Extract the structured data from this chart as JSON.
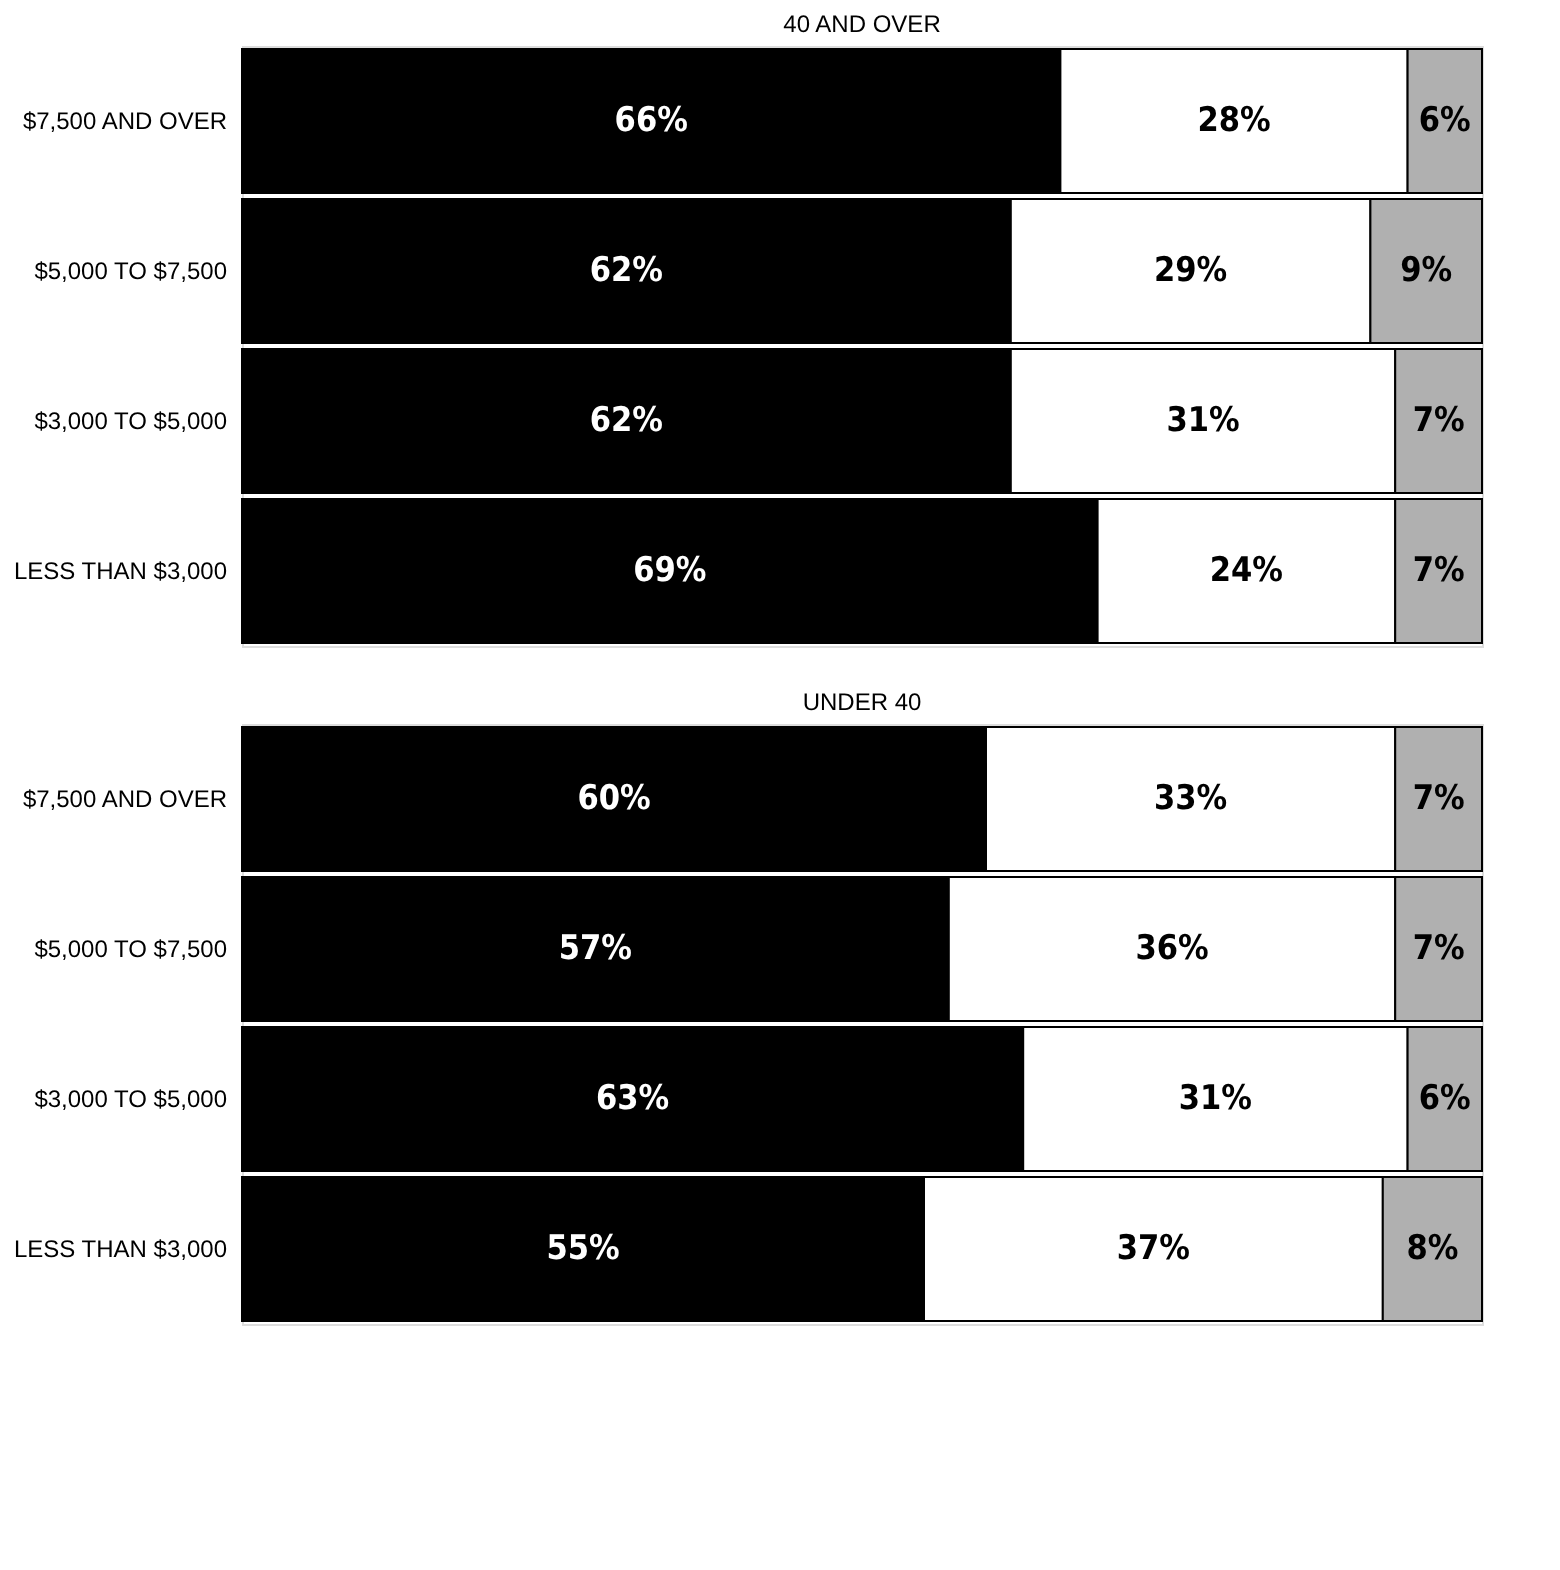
{
  "chart_data": [
    {
      "type": "bar",
      "orientation": "horizontal",
      "stacked": true,
      "title": "40 AND OVER",
      "categories": [
        "$7,500 AND OVER",
        "$5,000 TO $7,500",
        "$3,000 TO $5,000",
        "LESS THAN $3,000"
      ],
      "legend": false,
      "tick_labels": "y",
      "series": [
        {
          "color": "#000000",
          "values": [
            66,
            62,
            62,
            69
          ],
          "value_labels": [
            "66%",
            "62%",
            "62%",
            "69%"
          ]
        },
        {
          "color": "#ffffff",
          "values": [
            28,
            29,
            31,
            24
          ],
          "value_labels": [
            "28%",
            "29%",
            "31%",
            "24%"
          ]
        },
        {
          "color": "#b0b0b0",
          "values": [
            6,
            9,
            7,
            7
          ],
          "value_labels": [
            "6%",
            "9%",
            "7%",
            "7%"
          ]
        }
      ]
    },
    {
      "type": "bar",
      "orientation": "horizontal",
      "stacked": true,
      "title": "UNDER 40",
      "categories": [
        "$7,500 AND OVER",
        "$5,000 TO $7,500",
        "$3,000 TO $5,000",
        "LESS THAN $3,000"
      ],
      "legend": false,
      "tick_labels": "y",
      "series": [
        {
          "color": "#000000",
          "values": [
            60,
            57,
            63,
            55
          ],
          "value_labels": [
            "60%",
            "57%",
            "63%",
            "55%"
          ]
        },
        {
          "color": "#ffffff",
          "values": [
            33,
            36,
            31,
            37
          ],
          "value_labels": [
            "33%",
            "36%",
            "31%",
            "37%"
          ]
        },
        {
          "color": "#b0b0b0",
          "values": [
            7,
            7,
            6,
            8
          ],
          "value_labels": [
            "7%",
            "7%",
            "6%",
            "8%"
          ]
        }
      ]
    }
  ]
}
